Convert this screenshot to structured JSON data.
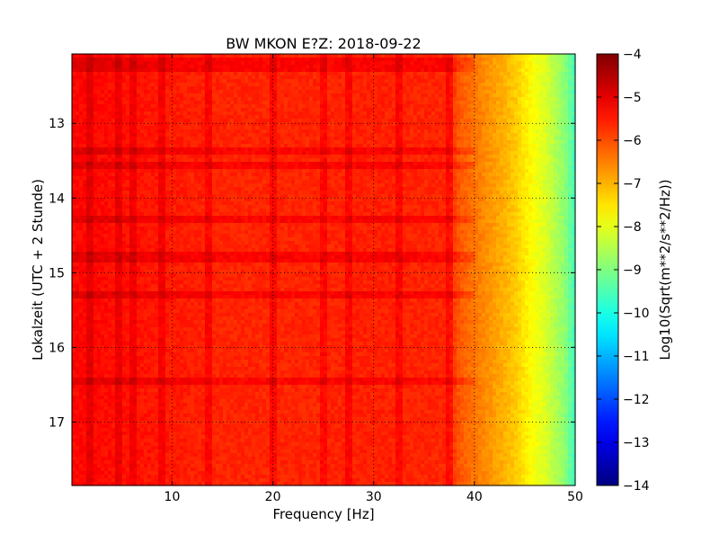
{
  "chart_data": {
    "type": "heatmap",
    "title": "BW MKON E?Z: 2018-09-22",
    "xlabel": "Frequency [Hz]",
    "ylabel": "Lokalzeit (UTC + 2 Stunde)",
    "xlim": [
      0.06,
      50
    ],
    "ylim": [
      12.07,
      17.85
    ],
    "y_inverted": true,
    "x_ticks": [
      10,
      20,
      30,
      40,
      50
    ],
    "y_ticks": [
      13,
      14,
      15,
      16,
      17
    ],
    "x_tick_labels": [
      "10",
      "20",
      "30",
      "40",
      "50"
    ],
    "y_tick_labels": [
      "13",
      "14",
      "15",
      "16",
      "17"
    ],
    "grid": true,
    "colorbar": {
      "label": "Log10(Sqrt(m**2/s**2/Hz))",
      "min": -14,
      "max": -4,
      "ticks": [
        -4,
        -5,
        -6,
        -7,
        -8,
        -9,
        -10,
        -11,
        -12,
        -13,
        -14
      ],
      "tick_labels": [
        "−4",
        "−5",
        "−6",
        "−7",
        "−8",
        "−9",
        "−10",
        "−11",
        "−12",
        "−13",
        "−14"
      ],
      "colormap": "jet"
    },
    "frequency_profile": {
      "freq": [
        0,
        2,
        5,
        10,
        15,
        20,
        25,
        30,
        35,
        37.5,
        38.5,
        40,
        42,
        44,
        45.5,
        47,
        49,
        50
      ],
      "log_psd": [
        -5.3,
        -5.3,
        -5.4,
        -5.5,
        -5.6,
        -5.6,
        -5.6,
        -5.55,
        -5.6,
        -5.6,
        -6.1,
        -6.4,
        -6.8,
        -7.2,
        -7.7,
        -8.1,
        -8.9,
        -9.6
      ]
    },
    "vertical_lines_hz": [
      2.0,
      4.7,
      6.0,
      9.0,
      13.6,
      20.1,
      25.1,
      27.6,
      32.6,
      37.6
    ],
    "horizontal_bands_time": [
      12.17,
      12.27,
      13.35,
      13.55,
      14.27,
      14.75,
      14.82,
      15.32,
      16.45
    ]
  }
}
